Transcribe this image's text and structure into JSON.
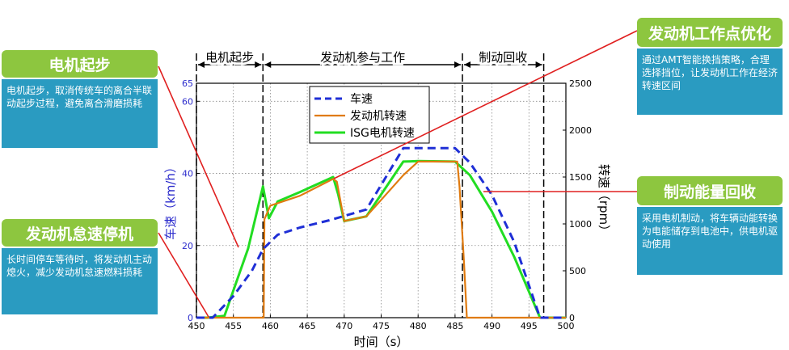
{
  "callouts": [
    {
      "key": "motor_start",
      "title": "电机起步",
      "text": "电机起步，取消传统车的离合半联动起步过程，避免离合滑磨损耗"
    },
    {
      "key": "idle_stop",
      "title": "发动机怠速停机",
      "text": "长时间停车等待时，将发动机主动熄火，减少发动机怠速燃料损耗"
    },
    {
      "key": "engine_opt",
      "title": "发动机工作点优化",
      "text": "通过AMT智能换挡策略，合理选择挡位，让发动机工作在经济转速区间"
    },
    {
      "key": "regen",
      "title": "制动能量回收",
      "text": "采用电机制动，将车辆动能转换为电能储存到电池中，供电机驱动使用"
    }
  ],
  "colors": {
    "callout_green": "#8dc63f",
    "callout_blue": "#2a9bc1",
    "vehicle_speed": "#1f2fd6",
    "engine_speed": "#e07b10",
    "isg_speed": "#22dd22",
    "pointer": "#e02020"
  },
  "chart_data": {
    "type": "line",
    "title": "",
    "phases": [
      {
        "label": "电机起步",
        "from": 450,
        "to": 459
      },
      {
        "label": "发动机参与工作",
        "from": 459,
        "to": 486
      },
      {
        "label": "制动回收",
        "from": 486,
        "to": 497
      }
    ],
    "xlabel": "时间（s）",
    "ylabel_left": "车速（km/h）",
    "ylabel_right": "转速（rpm）",
    "xlim": [
      450,
      500
    ],
    "ylim_left": [
      0,
      65
    ],
    "ylim_right": [
      0,
      2500
    ],
    "x_ticks": [
      "450",
      "455",
      "460",
      "465",
      "470",
      "475",
      "480",
      "485",
      "490",
      "495",
      "500"
    ],
    "y_left_ticks": [
      "0",
      "20",
      "40",
      "60",
      "65"
    ],
    "y_right_ticks": [
      "0",
      "500",
      "1000",
      "1500",
      "2000",
      "2500"
    ],
    "grid": true,
    "legend_position": "top-center",
    "series": [
      {
        "name": "车速",
        "axis": "left",
        "style": "dashed",
        "x": [
          450,
          452.2,
          455,
          457.5,
          459,
          461,
          464,
          468,
          473,
          478,
          480,
          483,
          485,
          487,
          490,
          493,
          496.5,
          500
        ],
        "y": [
          0,
          0,
          6,
          13,
          19,
          23,
          25,
          27,
          30,
          47,
          47,
          47,
          47,
          43,
          34,
          21,
          0,
          0
        ]
      },
      {
        "name": "发动机转速",
        "axis": "right",
        "style": "solid",
        "x": [
          450,
          459.1,
          459.2,
          460,
          464,
          468.5,
          469,
          470,
          473,
          478,
          480,
          485.3,
          485.6,
          486.2,
          486.6,
          500
        ],
        "y": [
          0,
          0,
          1050,
          1195,
          1300,
          1480,
          1450,
          1030,
          1080,
          1520,
          1665,
          1665,
          1400,
          600,
          0,
          0
        ]
      },
      {
        "name": "ISG电机转速",
        "axis": "right",
        "style": "solid",
        "x": [
          450,
          451.5,
          453.8,
          457,
          459,
          459.8,
          461,
          464,
          468.5,
          469.2,
          470,
          473,
          478,
          480,
          485,
          487,
          490,
          493,
          496.5,
          500
        ],
        "y": [
          0,
          0,
          20,
          740,
          1400,
          1060,
          1240,
          1340,
          1500,
          1310,
          1030,
          1080,
          1665,
          1670,
          1665,
          1520,
          1130,
          650,
          0,
          0
        ]
      }
    ]
  }
}
